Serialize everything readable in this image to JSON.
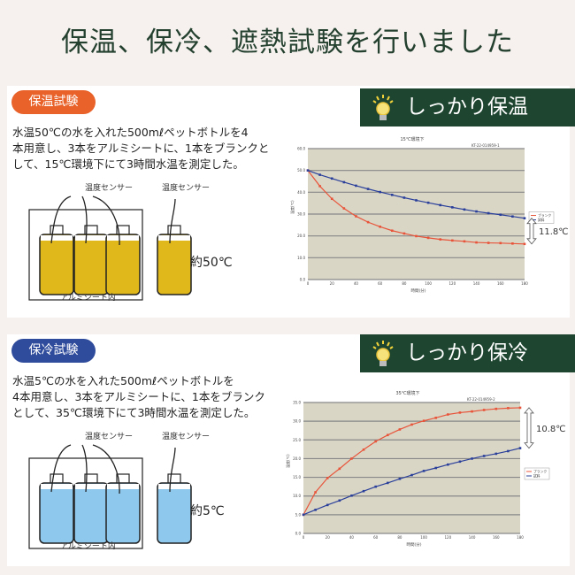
{
  "title": "保温、保冷、遮熱試験を行いました",
  "tests": [
    {
      "badge": "保温試験",
      "badge_color": "#e8622a",
      "banner": "しっかり保温",
      "description": [
        "水温50℃の水を入れた500mℓペットボトルを4",
        "本用意し、3本をアルミシートに、1本をブランクと",
        "して、15℃環境下にて3時間水温を測定した。"
      ],
      "sensor_label": "温度センサー",
      "sheet_label": "アルミシート内",
      "approx_temp": "約50℃",
      "liquid_color": "#e0b81c",
      "diff_label": "11.8℃"
    },
    {
      "badge": "保冷試験",
      "badge_color": "#2f4c9c",
      "banner": "しっかり保冷",
      "description": [
        "水温5℃の水を入れた500mℓペットボトルを",
        "4本用意し、3本をアルミシートに、1本をブランク",
        "として、35℃環境下にて3時間水温を測定した。"
      ],
      "sensor_label": "温度センサー",
      "sheet_label": "アルミシート内",
      "approx_temp": "約5℃",
      "liquid_color": "#8ec8ec",
      "diff_label": "10.8℃"
    }
  ],
  "chart_data": [
    {
      "type": "line",
      "title": "15℃環境下",
      "code": "KT-22-014959-1",
      "xlabel": "時間(分)",
      "ylabel": "温度(℃)",
      "x": [
        0,
        10,
        20,
        30,
        40,
        50,
        60,
        70,
        80,
        90,
        100,
        110,
        120,
        130,
        140,
        150,
        160,
        170,
        180
      ],
      "xlim": [
        0,
        180
      ],
      "ylim": [
        0,
        60
      ],
      "yticks": [
        "0.0",
        "10.0",
        "20.0",
        "30.0",
        "40.0",
        "50.0",
        "60.0"
      ],
      "xticks": [
        "0",
        "20",
        "40",
        "60",
        "80",
        "100",
        "120",
        "140",
        "160",
        "180"
      ],
      "series": [
        {
          "name": "ブランク",
          "color": "#e8543a",
          "values": [
            50,
            42.8,
            37,
            32.6,
            29,
            26.3,
            24.2,
            22.4,
            21.1,
            19.9,
            19.1,
            18.4,
            17.9,
            17.5,
            17,
            16.8,
            16.7,
            16.5,
            16.3
          ]
        },
        {
          "name": "試料",
          "color": "#2a3f9a",
          "values": [
            50,
            48,
            46.3,
            44.6,
            43,
            41.5,
            40.1,
            38.8,
            37.5,
            36.3,
            35.2,
            34.1,
            33.1,
            32.1,
            31.2,
            30.4,
            29.7,
            28.9,
            28.1
          ]
        }
      ],
      "legend": "right"
    },
    {
      "type": "line",
      "title": "35℃環境下",
      "code": "KT-22-014959-2",
      "xlabel": "時間(分)",
      "ylabel": "温度(℃)",
      "x": [
        0,
        10,
        20,
        30,
        40,
        50,
        60,
        70,
        80,
        90,
        100,
        110,
        120,
        130,
        140,
        150,
        160,
        170,
        180
      ],
      "xlim": [
        0,
        180
      ],
      "ylim": [
        0,
        35
      ],
      "yticks": [
        "0.0",
        "5.0",
        "10.0",
        "15.0",
        "20.0",
        "25.0",
        "30.0",
        "35.0"
      ],
      "xticks": [
        "0",
        "20",
        "40",
        "60",
        "80",
        "100",
        "120",
        "140",
        "160",
        "180"
      ],
      "series": [
        {
          "name": "ブランク",
          "color": "#e8543a",
          "values": [
            5,
            11,
            14.8,
            17.3,
            20,
            22.4,
            24.6,
            26.3,
            27.8,
            29.1,
            30.1,
            30.9,
            31.8,
            32.3,
            32.6,
            33,
            33.3,
            33.5,
            33.6
          ]
        },
        {
          "name": "試料",
          "color": "#2a3f9a",
          "values": [
            5,
            6.3,
            7.6,
            8.8,
            10.1,
            11.3,
            12.5,
            13.5,
            14.6,
            15.6,
            16.7,
            17.5,
            18.4,
            19.2,
            20,
            20.7,
            21.3,
            22,
            22.8
          ]
        }
      ],
      "legend": "right"
    }
  ]
}
